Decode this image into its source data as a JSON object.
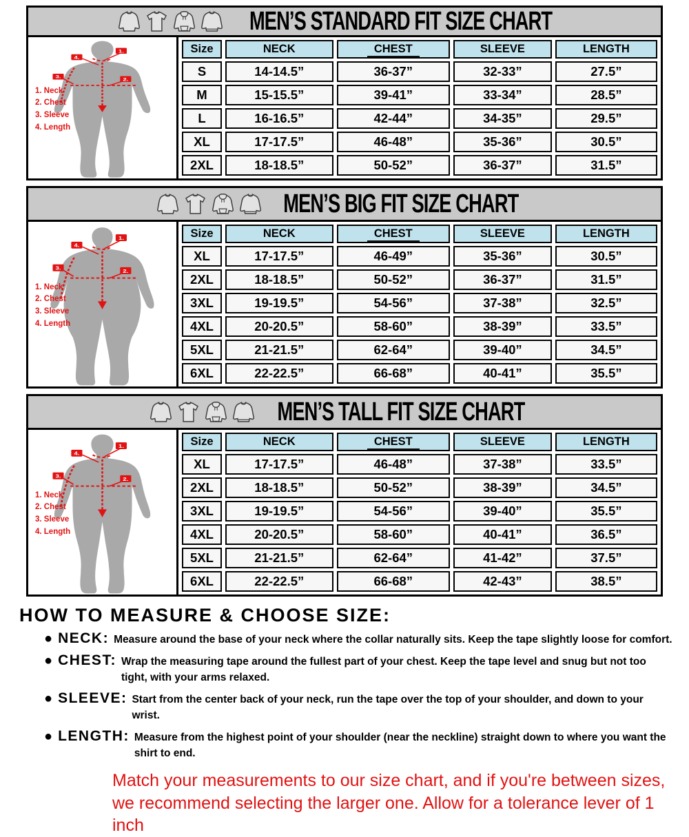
{
  "colors": {
    "accent_red": "#e11212",
    "header_bar_gray": "#c9c9c9",
    "table_header_blue": "#bfe2ec",
    "cell_bg": "#f7f7f7",
    "silhouette_gray": "#a9a9a9",
    "border_black": "#000000"
  },
  "garment_icons": [
    "long-sleeve-shirt-icon",
    "t-shirt-icon",
    "hoodie-icon",
    "sweatshirt-icon"
  ],
  "chart_data": [
    {
      "type": "table",
      "title": "MEN’S STANDARD FIT SIZE CHART",
      "underline_column": "CHEST",
      "figure_variant": "standard",
      "figure_legend": [
        "1. Neck",
        "2. Chest",
        "3. Sleeve",
        "4. Length"
      ],
      "figure_marker_labels": [
        "1.",
        "2.",
        "3.",
        "4."
      ],
      "columns": [
        "Size",
        "NECK",
        "CHEST",
        "SLEEVE",
        "LENGTH"
      ],
      "rows": [
        [
          "S",
          "14-14.5”",
          "36-37”",
          "32-33”",
          "27.5”"
        ],
        [
          "M",
          "15-15.5”",
          "39-41”",
          "33-34”",
          "28.5”"
        ],
        [
          "L",
          "16-16.5”",
          "42-44”",
          "34-35”",
          "29.5”"
        ],
        [
          "XL",
          "17-17.5”",
          "46-48”",
          "35-36”",
          "30.5”"
        ],
        [
          "2XL",
          "18-18.5”",
          "50-52”",
          "36-37”",
          "31.5”"
        ]
      ]
    },
    {
      "type": "table",
      "title": "MEN’S BIG FIT SIZE CHART",
      "underline_column": "CHEST",
      "figure_variant": "big",
      "figure_legend": [
        "1. Neck",
        "2. Chest",
        "3. Sleeve",
        "4. Length"
      ],
      "figure_marker_labels": [
        "1.",
        "2.",
        "3.",
        "4."
      ],
      "columns": [
        "Size",
        "NECK",
        "CHEST",
        "SLEEVE",
        "LENGTH"
      ],
      "rows": [
        [
          "XL",
          "17-17.5”",
          "46-49”",
          "35-36”",
          "30.5”"
        ],
        [
          "2XL",
          "18-18.5”",
          "50-52”",
          "36-37”",
          "31.5”"
        ],
        [
          "3XL",
          "19-19.5”",
          "54-56”",
          "37-38”",
          "32.5”"
        ],
        [
          "4XL",
          "20-20.5”",
          "58-60”",
          "38-39”",
          "33.5”"
        ],
        [
          "5XL",
          "21-21.5”",
          "62-64”",
          "39-40”",
          "34.5”"
        ],
        [
          "6XL",
          "22-22.5”",
          "66-68”",
          "40-41”",
          "35.5”"
        ]
      ]
    },
    {
      "type": "table",
      "title": "MEN’S TALL FIT SIZE CHART",
      "underline_column": "CHEST",
      "figure_variant": "tall",
      "figure_legend": [
        "1. Neck",
        "2. Chest",
        "3. Sleeve",
        "4. Length"
      ],
      "figure_marker_labels": [
        "1.",
        "2.",
        "3.",
        "4."
      ],
      "columns": [
        "Size",
        "NECK",
        "CHEST",
        "SLEEVE",
        "LENGTH"
      ],
      "rows": [
        [
          "XL",
          "17-17.5”",
          "46-48”",
          "37-38”",
          "33.5”"
        ],
        [
          "2XL",
          "18-18.5”",
          "50-52”",
          "38-39”",
          "34.5”"
        ],
        [
          "3XL",
          "19-19.5”",
          "54-56”",
          "39-40”",
          "35.5”"
        ],
        [
          "4XL",
          "20-20.5”",
          "58-60”",
          "40-41”",
          "36.5”"
        ],
        [
          "5XL",
          "21-21.5”",
          "62-64”",
          "41-42”",
          "37.5”"
        ],
        [
          "6XL",
          "22-22.5”",
          "66-68”",
          "42-43”",
          "38.5”"
        ]
      ]
    }
  ],
  "how_to": {
    "title": "HOW TO MEASURE & CHOOSE SIZE:",
    "items": [
      {
        "label": "NECK:",
        "text": "Measure around the base of your neck where the collar naturally sits. Keep the tape slightly loose for comfort."
      },
      {
        "label": "CHEST:",
        "text": "Wrap the measuring tape around the fullest part of your chest. Keep the tape level and snug but not too tight, with your arms relaxed."
      },
      {
        "label": "SLEEVE:",
        "text": "Start from the center back of your neck, run the tape over the top of your shoulder, and down to your wrist."
      },
      {
        "label": "LENGTH:",
        "text": "Measure from the highest point of your shoulder (near the neckline) straight down to where you want the shirt to end."
      }
    ],
    "note_lines": [
      "Match your measurements to our size chart, and if you're between sizes,",
      "we recommend selecting the larger one. Allow for a tolerance lever of 1 inch"
    ]
  }
}
